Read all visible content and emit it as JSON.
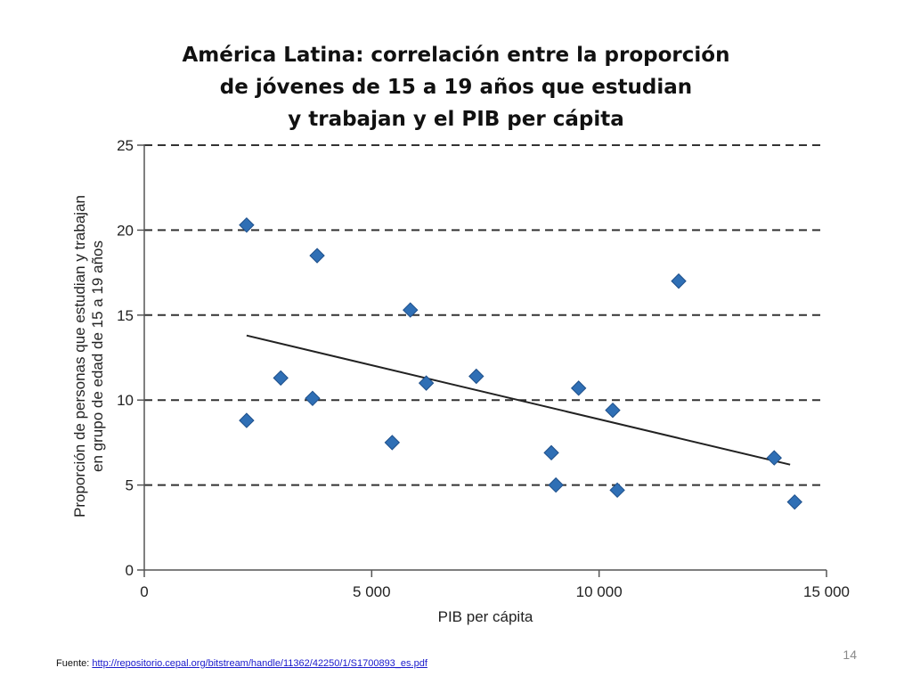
{
  "slide": {
    "title_lines": [
      "América Latina: correlación entre la proporción",
      "de jóvenes de 15 a 19 años que estudian",
      "y trabajan y el PIB per cápita"
    ],
    "source_prefix": "Fuente:",
    "source_link": "http://repositorio.cepal.org/bitstream/handle/11362/42250/1/S1700893_es.pdf",
    "page_number": "14"
  },
  "colors": {
    "marker_fill": "#2f6fb5",
    "marker_stroke": "#1e4f8a",
    "trend_line": "#222222",
    "grid_line": "#333333",
    "axis_line": "#555555",
    "link": "#1a1acc"
  },
  "chart_data": {
    "type": "scatter",
    "title": "",
    "xlabel": "PIB per cápita",
    "ylabel_lines": [
      "Proporción de personas que estudian y trabajan",
      "en grupo de edad de 15 a 19 años"
    ],
    "xlim": [
      0,
      15000
    ],
    "ylim": [
      0,
      25
    ],
    "x_ticks": [
      0,
      5000,
      10000,
      15000
    ],
    "x_tick_labels": [
      "0",
      "5 000",
      "10 000",
      "15 000"
    ],
    "y_ticks": [
      0,
      5,
      10,
      15,
      20,
      25
    ],
    "y_tick_labels": [
      "0",
      "5",
      "10",
      "15",
      "20",
      "25"
    ],
    "grid": "horizontal dashed",
    "marker": "diamond",
    "points": [
      {
        "x": 2250,
        "y": 20.3
      },
      {
        "x": 2250,
        "y": 8.8
      },
      {
        "x": 3000,
        "y": 11.3
      },
      {
        "x": 3700,
        "y": 10.1
      },
      {
        "x": 3800,
        "y": 18.5
      },
      {
        "x": 5450,
        "y": 7.5
      },
      {
        "x": 5850,
        "y": 15.3
      },
      {
        "x": 6200,
        "y": 11.0
      },
      {
        "x": 7300,
        "y": 11.4
      },
      {
        "x": 8950,
        "y": 6.9
      },
      {
        "x": 9050,
        "y": 5.0
      },
      {
        "x": 9550,
        "y": 10.7
      },
      {
        "x": 10300,
        "y": 9.4
      },
      {
        "x": 10400,
        "y": 4.7
      },
      {
        "x": 11750,
        "y": 17.0
      },
      {
        "x": 13850,
        "y": 6.6
      },
      {
        "x": 14300,
        "y": 4.0
      }
    ],
    "trend_line": {
      "x1": 2250,
      "y1": 13.8,
      "x2": 14200,
      "y2": 6.2
    }
  }
}
